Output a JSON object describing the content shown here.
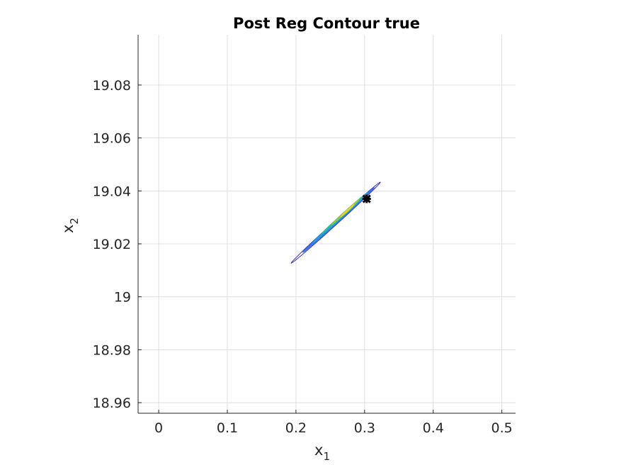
{
  "chart_data": {
    "type": "contour",
    "title": "Post Reg Contour true",
    "xlabel": {
      "main": "x",
      "sub": "1"
    },
    "ylabel": {
      "main": "x",
      "sub": "2"
    },
    "xlim": [
      -0.03,
      0.52
    ],
    "ylim": [
      18.956,
      19.099
    ],
    "x_ticks": [
      0,
      0.1,
      0.2,
      0.3,
      0.4,
      0.5
    ],
    "x_tick_labels": [
      "0",
      "0.1",
      "0.2",
      "0.3",
      "0.4",
      "0.5"
    ],
    "y_ticks": [
      18.96,
      18.98,
      19.0,
      19.02,
      19.04,
      19.06,
      19.08
    ],
    "y_tick_labels": [
      "18.96",
      "18.98",
      "19",
      "19.02",
      "19.04",
      "19.06",
      "19.08"
    ],
    "grid": true,
    "contour_levels": [
      {
        "level": 1,
        "color": "#3b2fb0",
        "center": [
          0.258,
          19.028
        ],
        "semi_major_x": 0.065,
        "slope": 0.235,
        "half_width": 0.0009
      },
      {
        "level": 2,
        "color": "#2f6fe8",
        "center": [
          0.262,
          19.029
        ],
        "semi_major_x": 0.052,
        "slope": 0.235,
        "half_width": 0.0007
      },
      {
        "level": 3,
        "color": "#1fa3d8",
        "center": [
          0.265,
          19.03
        ],
        "semi_major_x": 0.04,
        "slope": 0.235,
        "half_width": 0.0006
      },
      {
        "level": 4,
        "color": "#33b89a",
        "center": [
          0.268,
          19.031
        ],
        "semi_major_x": 0.03,
        "slope": 0.235,
        "half_width": 0.0005
      },
      {
        "level": 5,
        "color": "#9ac64a",
        "center": [
          0.272,
          19.032
        ],
        "semi_major_x": 0.02,
        "slope": 0.235,
        "half_width": 0.0004
      },
      {
        "level": 6,
        "color": "#e6d52a",
        "center": [
          0.275,
          19.0325
        ],
        "semi_major_x": 0.01,
        "slope": 0.235,
        "half_width": 0.0003
      }
    ],
    "true_point": {
      "x": 0.303,
      "y": 19.037,
      "color": "#000000"
    }
  }
}
